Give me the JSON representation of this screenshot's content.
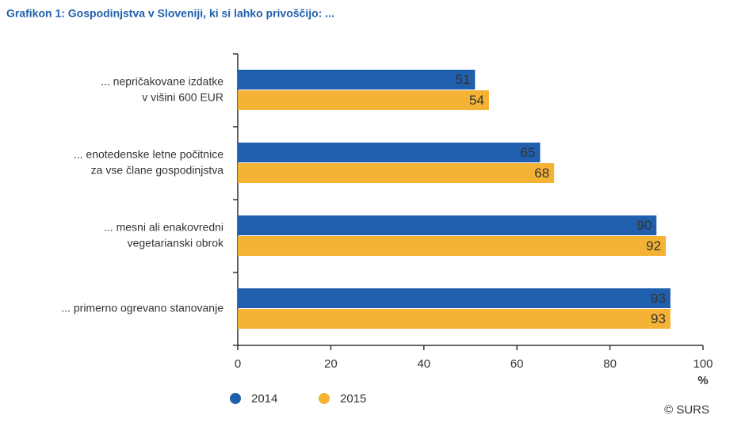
{
  "chart_data": {
    "type": "hbar",
    "title": "Grafikon 1: Gospodinjstva v Sloveniji, ki si lahko privoščijo: ...",
    "categories": [
      [
        "... nepričakovane izdatke",
        "v višini 600 EUR"
      ],
      [
        "... enotedenske letne počitnice",
        "za vse člane gospodinjstva"
      ],
      [
        "... mesni ali enakovredni",
        "vegetarianski obrok"
      ],
      [
        "... primerno ogrevano stanovanje"
      ]
    ],
    "series": [
      {
        "name": "2014",
        "color": "#1f5fad",
        "values": [
          51,
          65,
          90,
          93
        ]
      },
      {
        "name": "2015",
        "color": "#f5b335",
        "values": [
          54,
          68,
          92,
          93
        ]
      }
    ],
    "xlim": [
      0,
      100
    ],
    "xticks": [
      0,
      20,
      40,
      60,
      80,
      100
    ],
    "xlabel": "%",
    "source": "© SURS"
  }
}
